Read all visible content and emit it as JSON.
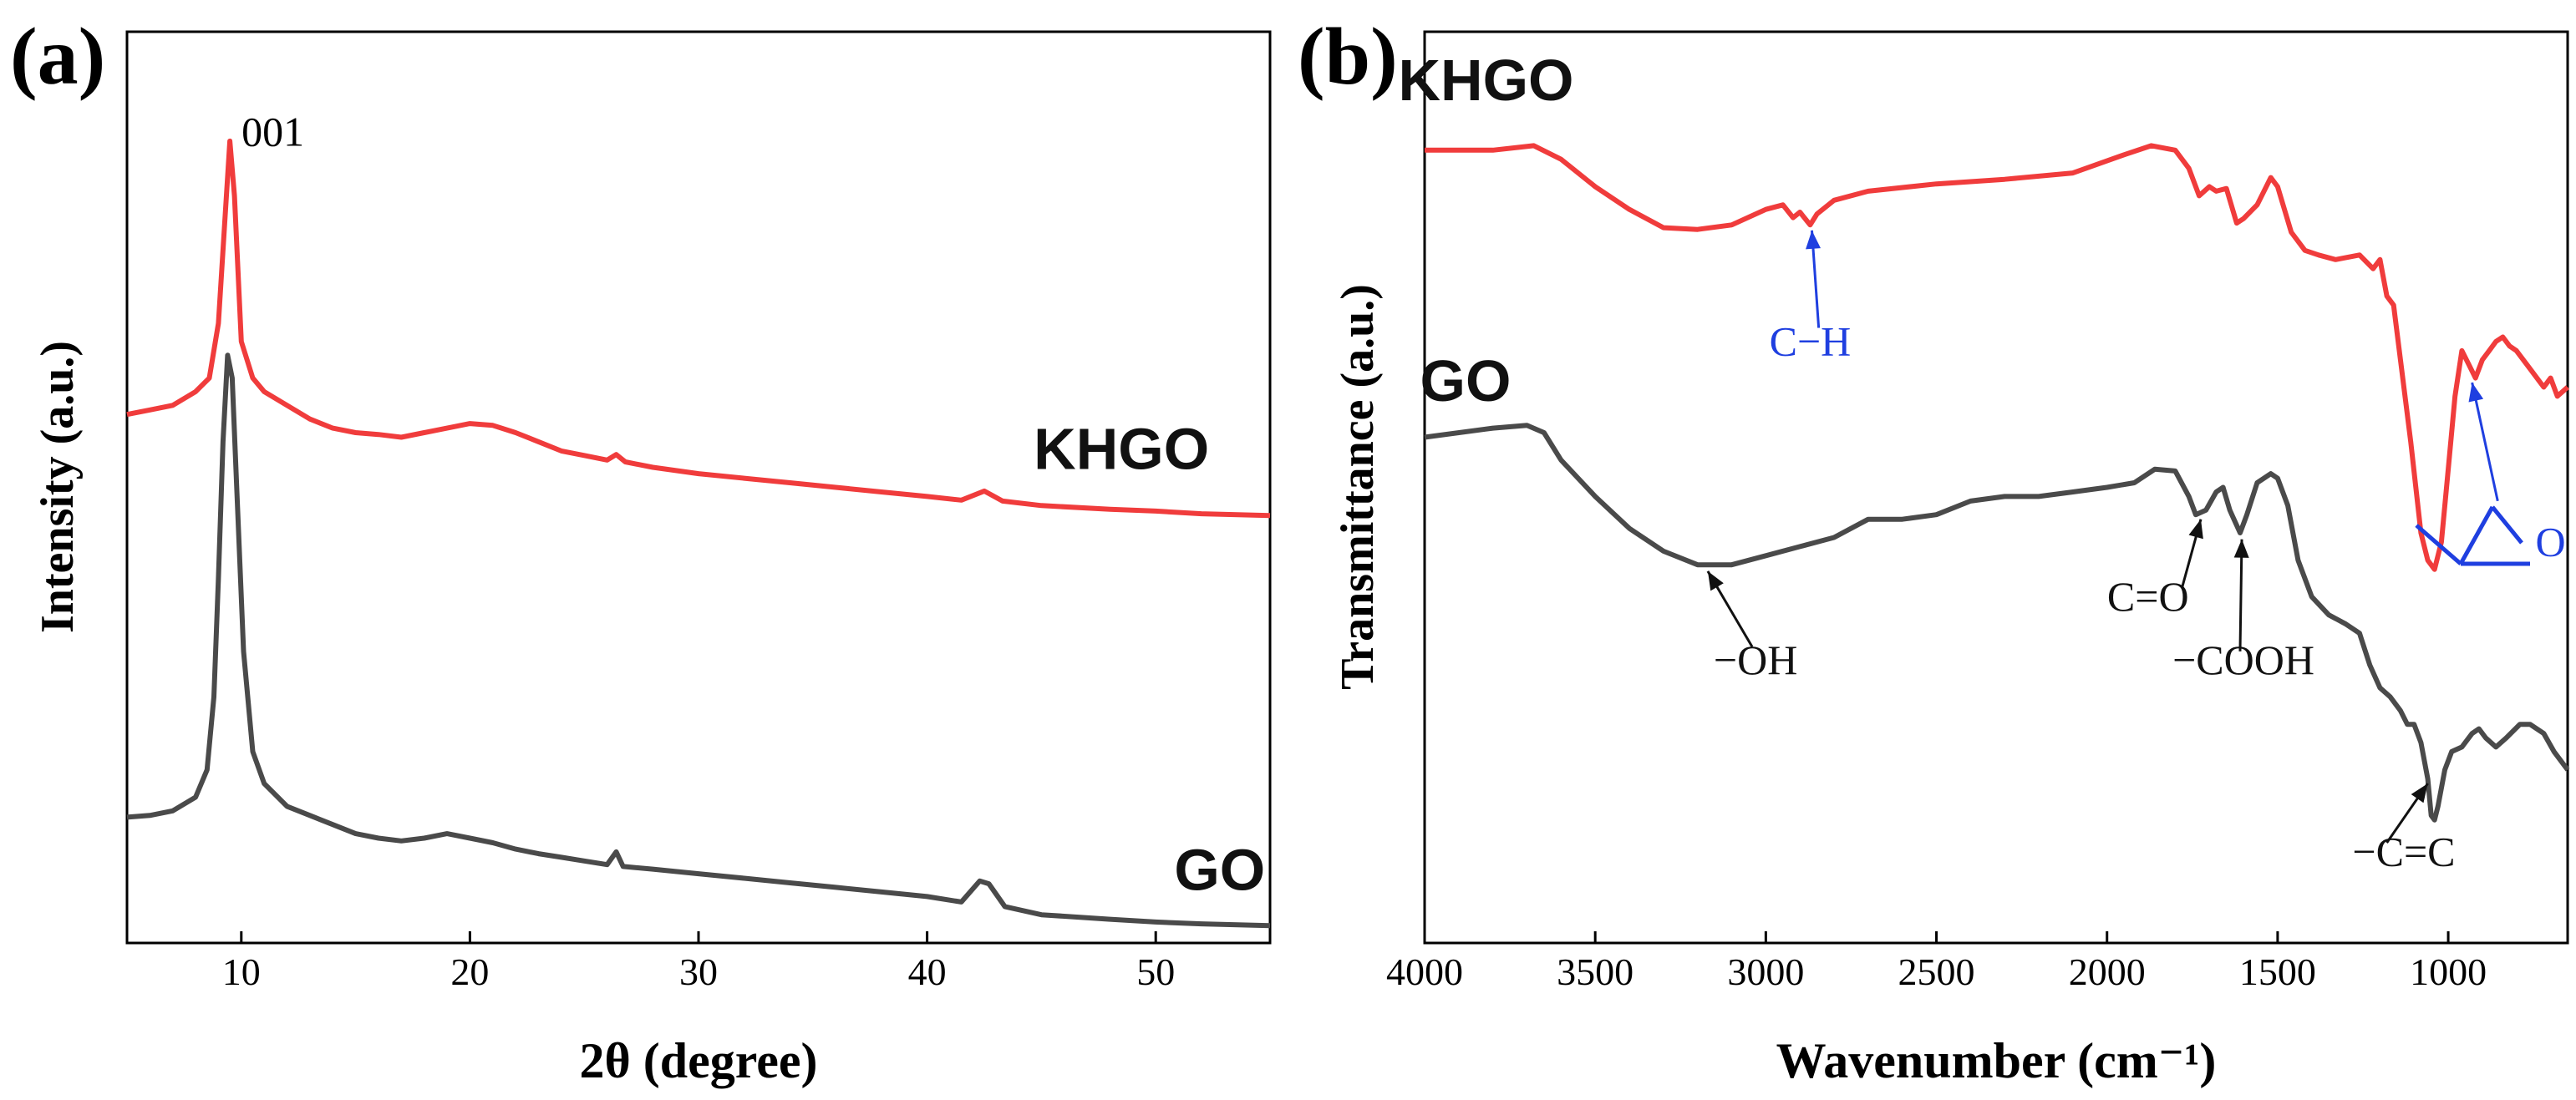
{
  "chart_data": [
    {
      "type": "line",
      "panel_label": "(a)",
      "xlabel": "2θ (degree)",
      "ylabel": "Intensity (a.u.)",
      "xlim": [
        5,
        55
      ],
      "ylim": [
        0,
        100
      ],
      "x_ticks": [
        10,
        20,
        30,
        40,
        50
      ],
      "x_tick_labels": [
        "10",
        "20",
        "30",
        "40",
        "50"
      ],
      "y_ticks_visible": false,
      "peak_annotation": {
        "label": "001",
        "x": 9.5,
        "y": 87.5
      },
      "series": [
        {
          "name": "KHGO",
          "color": "#f03c3c",
          "label_pos": {
            "x": 48.5,
            "y": 52
          },
          "points": [
            [
              5,
              58
            ],
            [
              6,
              58.5
            ],
            [
              7,
              59
            ],
            [
              8,
              60.5
            ],
            [
              8.6,
              62
            ],
            [
              9.0,
              68
            ],
            [
              9.3,
              80
            ],
            [
              9.5,
              88
            ],
            [
              9.7,
              82
            ],
            [
              10.0,
              66
            ],
            [
              10.5,
              62
            ],
            [
              11,
              60.5
            ],
            [
              12,
              59
            ],
            [
              13,
              57.5
            ],
            [
              14,
              56.5
            ],
            [
              15,
              56
            ],
            [
              16,
              55.8
            ],
            [
              17,
              55.5
            ],
            [
              18,
              56
            ],
            [
              19,
              56.5
            ],
            [
              20,
              57
            ],
            [
              21,
              56.8
            ],
            [
              22,
              56
            ],
            [
              23,
              55
            ],
            [
              24,
              54
            ],
            [
              25,
              53.5
            ],
            [
              26,
              53
            ],
            [
              26.4,
              53.6
            ],
            [
              26.8,
              52.8
            ],
            [
              28,
              52.2
            ],
            [
              30,
              51.5
            ],
            [
              32,
              51
            ],
            [
              34,
              50.5
            ],
            [
              36,
              50
            ],
            [
              38,
              49.5
            ],
            [
              40,
              49
            ],
            [
              41.5,
              48.6
            ],
            [
              42.5,
              49.6
            ],
            [
              43.3,
              48.5
            ],
            [
              45,
              48
            ],
            [
              48,
              47.6
            ],
            [
              50,
              47.4
            ],
            [
              52,
              47.1
            ],
            [
              55,
              46.9
            ]
          ]
        },
        {
          "name": "GO",
          "color": "#4a4a4a",
          "label_pos": {
            "x": 52.8,
            "y": 5.8
          },
          "points": [
            [
              5,
              13.8
            ],
            [
              6,
              14
            ],
            [
              7,
              14.5
            ],
            [
              8,
              16
            ],
            [
              8.5,
              19
            ],
            [
              8.8,
              27
            ],
            [
              9.0,
              40
            ],
            [
              9.2,
              55
            ],
            [
              9.4,
              64.5
            ],
            [
              9.6,
              62
            ],
            [
              9.8,
              50
            ],
            [
              10.1,
              32
            ],
            [
              10.5,
              21
            ],
            [
              11,
              17.5
            ],
            [
              12,
              15
            ],
            [
              13,
              14
            ],
            [
              14,
              13
            ],
            [
              15,
              12
            ],
            [
              16,
              11.5
            ],
            [
              17,
              11.2
            ],
            [
              18,
              11.5
            ],
            [
              19,
              12
            ],
            [
              20,
              11.5
            ],
            [
              21,
              11
            ],
            [
              22,
              10.3
            ],
            [
              23,
              9.8
            ],
            [
              24,
              9.4
            ],
            [
              25,
              9
            ],
            [
              26,
              8.6
            ],
            [
              26.4,
              10
            ],
            [
              26.7,
              8.4
            ],
            [
              28,
              8.1
            ],
            [
              30,
              7.6
            ],
            [
              32,
              7.1
            ],
            [
              34,
              6.6
            ],
            [
              36,
              6.1
            ],
            [
              38,
              5.6
            ],
            [
              40,
              5.1
            ],
            [
              41.5,
              4.5
            ],
            [
              42.3,
              6.8
            ],
            [
              42.7,
              6.5
            ],
            [
              43.4,
              4
            ],
            [
              45,
              3.1
            ],
            [
              48,
              2.6
            ],
            [
              50,
              2.3
            ],
            [
              52,
              2.1
            ],
            [
              55,
              1.9
            ]
          ]
        }
      ]
    },
    {
      "type": "line",
      "panel_label": "(b)",
      "xlabel": "Wavenumber (cm⁻¹)",
      "ylabel": "Transmittance (a.u.)",
      "xlim": [
        4000,
        650
      ],
      "ylim": [
        0,
        100
      ],
      "x_ticks": [
        4000,
        3500,
        3000,
        2500,
        2000,
        1500,
        1000
      ],
      "x_tick_labels": [
        "4000",
        "3500",
        "3000",
        "2500",
        "2000",
        "1500",
        "1000"
      ],
      "y_ticks_visible": false,
      "series": [
        {
          "name": "KHGO",
          "color": "#f03c3c",
          "label_pos": {
            "x": 3820,
            "y": 92.5
          },
          "points": [
            [
              4000,
              87
            ],
            [
              3800,
              87
            ],
            [
              3680,
              87.5
            ],
            [
              3600,
              86
            ],
            [
              3500,
              83
            ],
            [
              3400,
              80.5
            ],
            [
              3300,
              78.5
            ],
            [
              3200,
              78.3
            ],
            [
              3100,
              78.8
            ],
            [
              3000,
              80.5
            ],
            [
              2950,
              81
            ],
            [
              2920,
              79.6
            ],
            [
              2900,
              80.2
            ],
            [
              2870,
              78.8
            ],
            [
              2850,
              80
            ],
            [
              2800,
              81.5
            ],
            [
              2700,
              82.5
            ],
            [
              2500,
              83.3
            ],
            [
              2300,
              83.8
            ],
            [
              2100,
              84.5
            ],
            [
              1950,
              86.5
            ],
            [
              1870,
              87.5
            ],
            [
              1800,
              87
            ],
            [
              1760,
              85
            ],
            [
              1730,
              82
            ],
            [
              1700,
              83
            ],
            [
              1680,
              82.5
            ],
            [
              1650,
              82.8
            ],
            [
              1620,
              79
            ],
            [
              1600,
              79.5
            ],
            [
              1560,
              81
            ],
            [
              1520,
              84
            ],
            [
              1500,
              83
            ],
            [
              1460,
              78
            ],
            [
              1420,
              76
            ],
            [
              1380,
              75.5
            ],
            [
              1330,
              75
            ],
            [
              1260,
              75.5
            ],
            [
              1220,
              74
            ],
            [
              1200,
              75
            ],
            [
              1180,
              71
            ],
            [
              1160,
              70
            ],
            [
              1140,
              64
            ],
            [
              1110,
              55
            ],
            [
              1080,
              45
            ],
            [
              1060,
              42
            ],
            [
              1040,
              41
            ],
            [
              1020,
              44
            ],
            [
              1000,
              52
            ],
            [
              980,
              60
            ],
            [
              960,
              65
            ],
            [
              940,
              63.5
            ],
            [
              920,
              62
            ],
            [
              900,
              64
            ],
            [
              880,
              65
            ],
            [
              860,
              66
            ],
            [
              840,
              66.5
            ],
            [
              820,
              65.5
            ],
            [
              800,
              65
            ],
            [
              760,
              63
            ],
            [
              720,
              61
            ],
            [
              700,
              62
            ],
            [
              680,
              60
            ],
            [
              650,
              61
            ]
          ]
        },
        {
          "name": "GO",
          "color": "#4a4a4a",
          "label_pos": {
            "x": 3880,
            "y": 59.5
          },
          "points": [
            [
              4000,
              55.5
            ],
            [
              3800,
              56.5
            ],
            [
              3700,
              56.8
            ],
            [
              3650,
              56
            ],
            [
              3600,
              53
            ],
            [
              3500,
              49
            ],
            [
              3400,
              45.5
            ],
            [
              3300,
              43
            ],
            [
              3200,
              41.5
            ],
            [
              3100,
              41.5
            ],
            [
              3000,
              42.5
            ],
            [
              2900,
              43.5
            ],
            [
              2800,
              44.5
            ],
            [
              2700,
              46.5
            ],
            [
              2600,
              46.5
            ],
            [
              2500,
              47
            ],
            [
              2400,
              48.5
            ],
            [
              2300,
              49
            ],
            [
              2200,
              49
            ],
            [
              2100,
              49.5
            ],
            [
              2000,
              50
            ],
            [
              1920,
              50.5
            ],
            [
              1860,
              52
            ],
            [
              1800,
              51.8
            ],
            [
              1760,
              49
            ],
            [
              1740,
              47
            ],
            [
              1710,
              47.5
            ],
            [
              1680,
              49.5
            ],
            [
              1660,
              50
            ],
            [
              1640,
              47.5
            ],
            [
              1610,
              45
            ],
            [
              1590,
              47
            ],
            [
              1560,
              50.5
            ],
            [
              1520,
              51.5
            ],
            [
              1500,
              51
            ],
            [
              1470,
              48
            ],
            [
              1440,
              42
            ],
            [
              1400,
              38
            ],
            [
              1350,
              36
            ],
            [
              1300,
              35
            ],
            [
              1260,
              34
            ],
            [
              1230,
              30.5
            ],
            [
              1200,
              28
            ],
            [
              1170,
              27
            ],
            [
              1140,
              25.5
            ],
            [
              1120,
              24
            ],
            [
              1100,
              24
            ],
            [
              1080,
              22
            ],
            [
              1060,
              18
            ],
            [
              1050,
              14
            ],
            [
              1040,
              13.5
            ],
            [
              1030,
              15
            ],
            [
              1010,
              19
            ],
            [
              990,
              21
            ],
            [
              960,
              21.5
            ],
            [
              930,
              23
            ],
            [
              910,
              23.5
            ],
            [
              890,
              22.5
            ],
            [
              860,
              21.5
            ],
            [
              830,
              22.5
            ],
            [
              790,
              24
            ],
            [
              760,
              24
            ],
            [
              720,
              23
            ],
            [
              690,
              21
            ],
            [
              650,
              19
            ]
          ]
        }
      ],
      "annotations": [
        {
          "label": "C−H",
          "color": "#1f3fe0",
          "text_pos": [
            2870,
            64.5
          ],
          "arrow_from": [
            2845,
            67.5
          ],
          "arrow_to": [
            2865,
            78.2
          ]
        },
        {
          "label": "−OH",
          "color": "#111111",
          "text_pos": [
            3030,
            29.5
          ],
          "arrow_from": [
            3040,
            32.5
          ],
          "arrow_to": [
            3170,
            40.8
          ]
        },
        {
          "label": "C=O",
          "color": "#111111",
          "text_pos": [
            1880,
            36.5
          ],
          "arrow_from": [
            1780,
            39
          ],
          "arrow_to": [
            1725,
            46.5
          ]
        },
        {
          "label": "−COOH",
          "color": "#111111",
          "text_pos": [
            1600,
            29.5
          ],
          "arrow_from": [
            1610,
            32
          ],
          "arrow_to": [
            1605,
            44.3
          ]
        },
        {
          "label": "−C=C",
          "color": "#111111",
          "text_pos": [
            1130,
            8.5
          ],
          "arrow_from": [
            1180,
            11
          ],
          "arrow_to": [
            1060,
            17.5
          ]
        },
        {
          "label": "O",
          "color": "#1f3fe0",
          "text_pos": [
            700,
            42.5
          ],
          "arrow_from": [
            855,
            48.5
          ],
          "arrow_to": [
            930,
            61.5
          ]
        }
      ]
    }
  ]
}
